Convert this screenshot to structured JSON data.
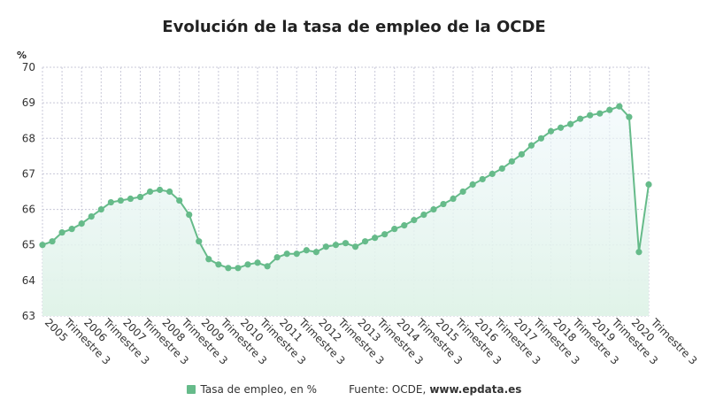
{
  "colors": {
    "series": "#66bb8a",
    "area_top": "#eef7fb",
    "area_bottom": "#e0f3e8",
    "grid": "#c8c8d8"
  },
  "footer": {
    "legend_label": "Tasa de empleo, en %",
    "source_prefix": "Fuente: OCDE,",
    "source_value": "www.epdata.es"
  },
  "chart_data": {
    "type": "area",
    "title": "Evolución de la tasa de empleo de la OCDE",
    "ylabel": "%",
    "xlabel": "",
    "ylim": [
      63,
      70
    ],
    "yticks": [
      63,
      64,
      65,
      66,
      67,
      68,
      69,
      70
    ],
    "grid": true,
    "legend_position": "bottom",
    "tick_labels": [
      "2005",
      "Trimestre 3",
      "2006",
      "Trimestre 3",
      "2007",
      "Trimestre 3",
      "2008",
      "Trimestre 3",
      "2009",
      "Trimestre 3",
      "2010",
      "Trimestre 3",
      "2011",
      "Trimestre 3",
      "2012",
      "Trimestre 3",
      "2013",
      "Trimestre 3",
      "2014",
      "Trimestre 3",
      "2015",
      "Trimestre 3",
      "2016",
      "Trimestre 3",
      "2017",
      "Trimestre 3",
      "2018",
      "Trimestre 3",
      "2019",
      "Trimestre 3",
      "2020",
      "Trimestre 3"
    ],
    "series": [
      {
        "name": "Tasa de empleo, en %",
        "values": [
          65.0,
          65.1,
          65.35,
          65.45,
          65.6,
          65.8,
          66.0,
          66.2,
          66.25,
          66.3,
          66.35,
          66.5,
          66.55,
          66.5,
          66.25,
          65.85,
          65.1,
          64.6,
          64.45,
          64.35,
          64.35,
          64.45,
          64.5,
          64.4,
          64.65,
          64.75,
          64.75,
          64.85,
          64.8,
          64.95,
          65.0,
          65.05,
          64.95,
          65.1,
          65.2,
          65.3,
          65.45,
          65.55,
          65.7,
          65.85,
          66.0,
          66.15,
          66.3,
          66.5,
          66.7,
          66.85,
          67.0,
          67.15,
          67.35,
          67.55,
          67.8,
          68.0,
          68.2,
          68.3,
          68.4,
          68.55,
          68.65,
          68.7,
          68.8,
          68.9,
          68.6,
          64.8,
          66.7
        ]
      }
    ]
  }
}
